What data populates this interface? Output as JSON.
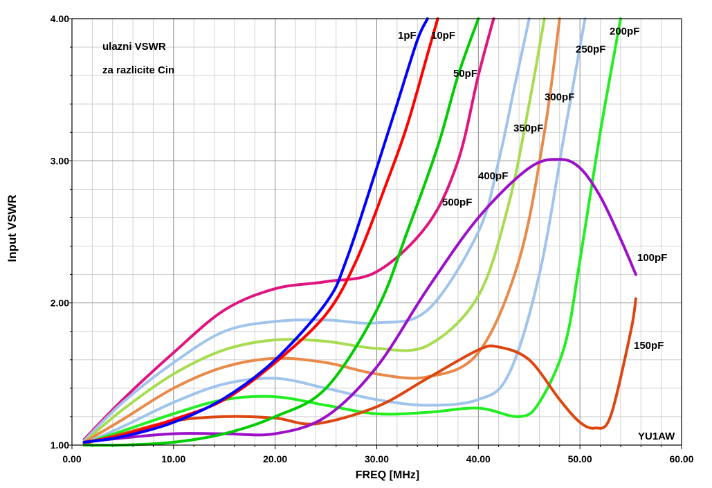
{
  "chart_data": {
    "type": "line",
    "xlabel": "FREQ [MHz]",
    "ylabel": "Input VSWR",
    "xlim": [
      0,
      60
    ],
    "ylim": [
      1,
      4
    ],
    "xticks": [
      "0.00",
      "10.00",
      "20.00",
      "30.00",
      "40.00",
      "50.00",
      "60.00"
    ],
    "yticks": [
      "1.00",
      "2.00",
      "3.00",
      "4.00"
    ],
    "grid": true,
    "annotations": [
      "ulazni VSWR",
      "za razlicite Cin",
      "YU1AW"
    ],
    "series": [
      {
        "name": "1pF",
        "color": "#0000ff",
        "x": [
          1.2,
          5,
          10,
          15,
          20,
          25,
          27,
          30,
          32,
          34,
          35
        ],
        "y": [
          1.02,
          1.06,
          1.16,
          1.33,
          1.6,
          2.0,
          2.3,
          2.95,
          3.4,
          3.85,
          4.0
        ]
      },
      {
        "name": "10pF",
        "color": "#ff0000",
        "x": [
          1.2,
          5,
          10,
          15,
          20,
          25,
          28,
          31,
          33,
          35,
          36
        ],
        "y": [
          1.02,
          1.07,
          1.18,
          1.32,
          1.58,
          1.92,
          2.3,
          2.85,
          3.25,
          3.75,
          4.0
        ]
      },
      {
        "name": "50pF",
        "color": "#00cc00",
        "x": [
          1.2,
          5,
          10,
          15,
          20,
          25,
          30,
          33,
          36,
          38,
          40
        ],
        "y": [
          1.0,
          1.0,
          1.02,
          1.08,
          1.2,
          1.4,
          1.95,
          2.5,
          3.1,
          3.6,
          4.0
        ]
      },
      {
        "name": "500pF",
        "color": "#e0147f",
        "x": [
          1.2,
          5,
          10,
          15,
          20,
          25,
          30,
          35,
          38,
          40,
          41.5
        ],
        "y": [
          1.04,
          1.32,
          1.65,
          1.95,
          2.1,
          2.15,
          2.22,
          2.55,
          3.0,
          3.6,
          4.0
        ]
      },
      {
        "name": "400pF",
        "color": "#a0c4ec",
        "x": [
          1.2,
          5,
          10,
          15,
          20,
          25,
          30,
          35,
          40,
          42,
          43.5,
          45
        ],
        "y": [
          1.03,
          1.3,
          1.58,
          1.8,
          1.87,
          1.88,
          1.86,
          1.95,
          2.5,
          3.0,
          3.5,
          4.0
        ]
      },
      {
        "name": "350pF",
        "color": "#a8dc50",
        "x": [
          1.2,
          5,
          10,
          15,
          20,
          25,
          30,
          35,
          40,
          43,
          45,
          46.5
        ],
        "y": [
          1.02,
          1.25,
          1.5,
          1.67,
          1.74,
          1.73,
          1.68,
          1.7,
          2.05,
          2.7,
          3.4,
          4.0
        ]
      },
      {
        "name": "300pF",
        "color": "#e88a4a",
        "x": [
          1.2,
          5,
          10,
          15,
          20,
          25,
          30,
          35,
          40,
          44,
          46.5,
          48
        ],
        "y": [
          1.02,
          1.18,
          1.4,
          1.55,
          1.61,
          1.58,
          1.5,
          1.48,
          1.65,
          2.3,
          3.2,
          4.0
        ]
      },
      {
        "name": "250pF",
        "color": "#a0c4ec",
        "x": [
          1.2,
          5,
          10,
          15,
          20,
          25,
          30,
          35,
          40,
          43,
          46,
          48.5,
          50.5
        ],
        "y": [
          1.01,
          1.13,
          1.3,
          1.43,
          1.47,
          1.4,
          1.32,
          1.28,
          1.32,
          1.5,
          2.2,
          3.2,
          4.0
        ]
      },
      {
        "name": "200pF",
        "color": "#22ee22",
        "x": [
          1.2,
          5,
          10,
          15,
          20,
          25,
          30,
          35,
          40,
          44,
          46,
          48.5,
          50,
          52,
          54
        ],
        "y": [
          1.01,
          1.1,
          1.22,
          1.32,
          1.34,
          1.28,
          1.22,
          1.23,
          1.26,
          1.2,
          1.3,
          1.7,
          2.3,
          3.2,
          4.0
        ]
      },
      {
        "name": "100pF",
        "color": "#9b10c8",
        "x": [
          1.2,
          5,
          10,
          15,
          20,
          25,
          30,
          35,
          40,
          45,
          48,
          50,
          52,
          54,
          55.5
        ],
        "y": [
          1.02,
          1.05,
          1.08,
          1.08,
          1.08,
          1.2,
          1.55,
          2.1,
          2.6,
          2.95,
          3.01,
          2.95,
          2.75,
          2.45,
          2.2
        ]
      },
      {
        "name": "150pF",
        "color": "#dc4610",
        "x": [
          1.2,
          5,
          10,
          15,
          20,
          24,
          30,
          35,
          40,
          42,
          45,
          48,
          50,
          51.5,
          53,
          55,
          55.5
        ],
        "y": [
          1.01,
          1.08,
          1.17,
          1.2,
          1.19,
          1.15,
          1.27,
          1.47,
          1.67,
          1.69,
          1.6,
          1.32,
          1.16,
          1.12,
          1.2,
          1.8,
          2.03
        ]
      }
    ]
  }
}
